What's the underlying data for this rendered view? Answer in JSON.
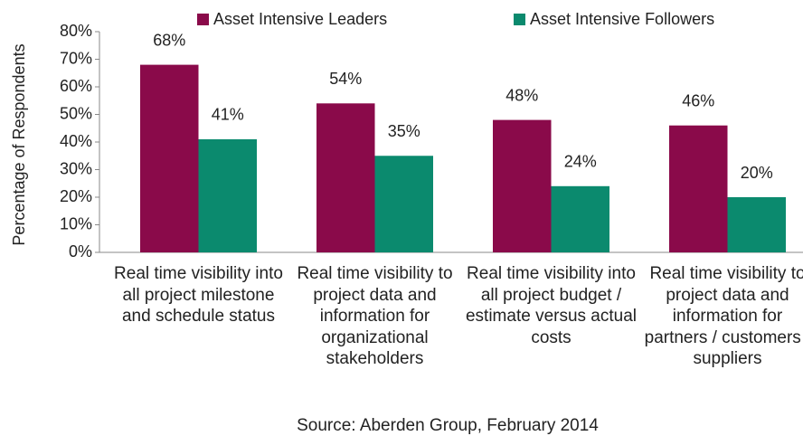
{
  "chart_data": {
    "type": "bar",
    "y_label": "Percentage of Respondents",
    "source": "Source: Aberden Group, February 2014",
    "categories": [
      "Real time visibility into all project milestone and schedule status",
      "Real time visibility to project data and information for organizational stakeholders",
      "Real time visibility into all project budget / estimate versus actual costs",
      "Real time visibility to project data and information for partners / customers / suppliers"
    ],
    "series": [
      {
        "name": "Asset Intensive Leaders",
        "color": "#8a0a4a",
        "values": [
          68,
          54,
          48,
          46
        ],
        "value_labels": [
          "68%",
          "54%",
          "48%",
          "46%"
        ]
      },
      {
        "name": "Asset Intensive Followers",
        "color": "#0b8a6e",
        "values": [
          41,
          35,
          24,
          20
        ],
        "value_labels": [
          "41%",
          "35%",
          "24%",
          "20%"
        ]
      }
    ],
    "ylim": [
      0,
      80
    ],
    "yticks": [
      {
        "value": 0,
        "label": "0%"
      },
      {
        "value": 10,
        "label": "10%"
      },
      {
        "value": 20,
        "label": "20%"
      },
      {
        "value": 30,
        "label": "30%"
      },
      {
        "value": 40,
        "label": "40%"
      },
      {
        "value": 50,
        "label": "50%"
      },
      {
        "value": 60,
        "label": "60%"
      },
      {
        "value": 70,
        "label": "70%"
      },
      {
        "value": 80,
        "label": "80%"
      }
    ],
    "legend": "top"
  }
}
